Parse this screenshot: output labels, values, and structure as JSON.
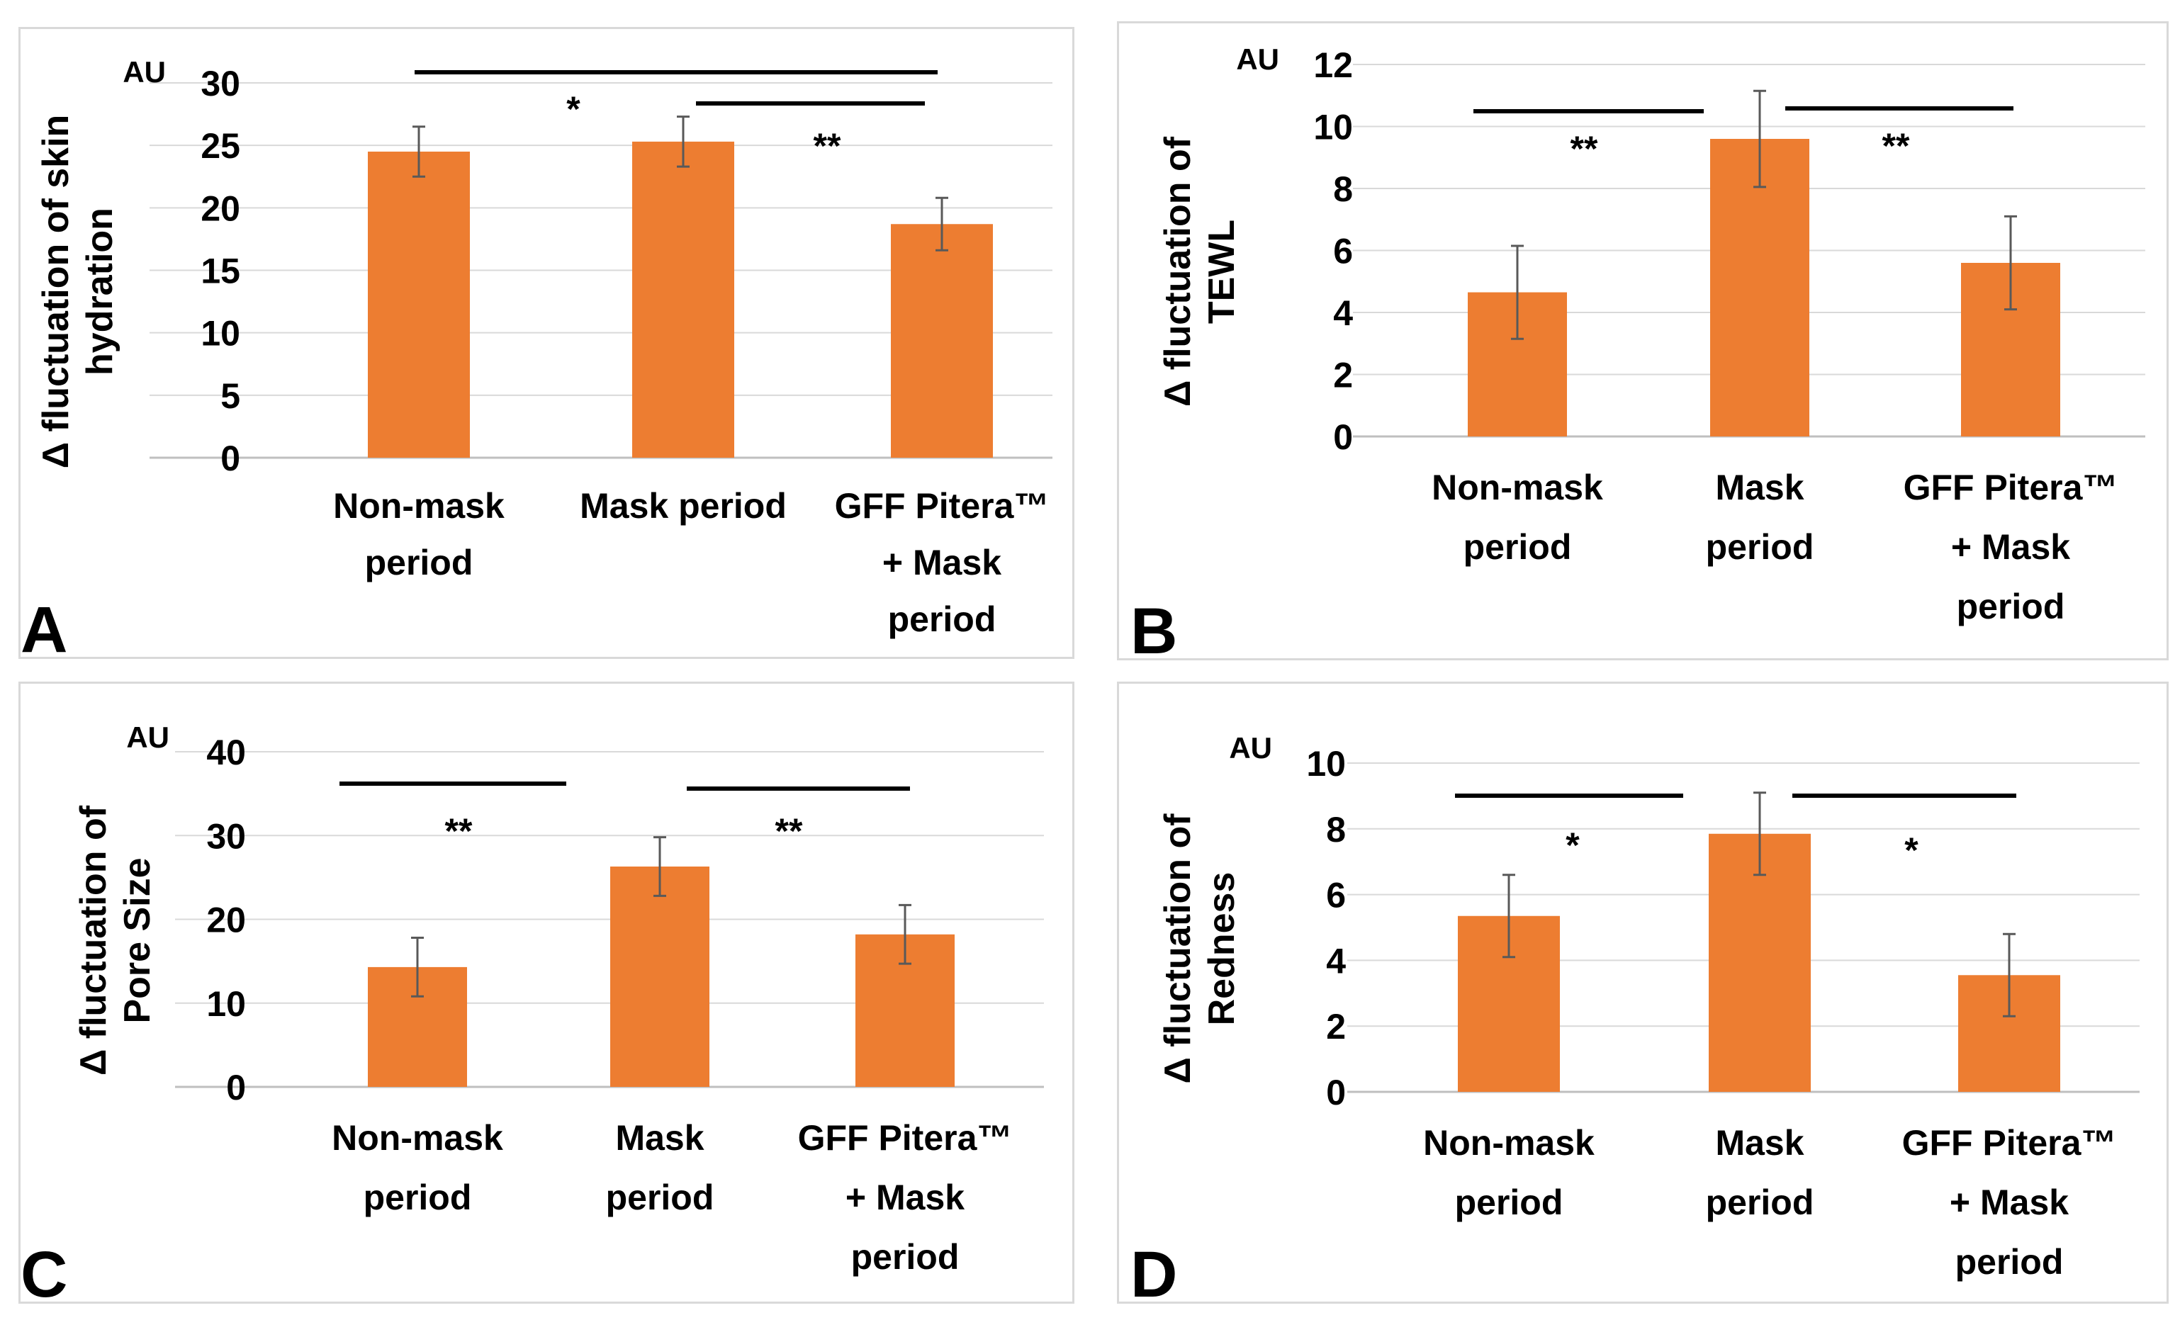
{
  "colors": {
    "bar": "#ED7D31",
    "grid": "#d9d9d9",
    "axis": "#bfbfbf",
    "text": "#000000",
    "error": "#595959"
  },
  "chart_data": [
    {
      "panel": "A",
      "type": "bar",
      "unit_label": "AU",
      "ylabel": [
        "Δ fluctuation of skin",
        "hydration"
      ],
      "ylim": [
        0,
        30
      ],
      "ticks": [
        0,
        5,
        10,
        15,
        20,
        25,
        30
      ],
      "categories": [
        [
          "Non-mask",
          "period"
        ],
        [
          "Mask period"
        ],
        [
          "GFF Pitera™",
          "+ Mask",
          "period"
        ]
      ],
      "values": [
        24.5,
        25.3,
        18.7
      ],
      "errors": [
        2.0,
        2.0,
        2.1
      ],
      "significance": [
        {
          "from": 0,
          "to": 2,
          "label": "*"
        },
        {
          "from": 1,
          "to": 2,
          "label": "**"
        }
      ]
    },
    {
      "panel": "B",
      "type": "bar",
      "unit_label": "AU",
      "ylabel": [
        "Δ fluctuation of",
        "TEWL"
      ],
      "ylim": [
        0,
        12
      ],
      "ticks": [
        0,
        2,
        4,
        6,
        8,
        10,
        12
      ],
      "categories": [
        [
          "Non-mask",
          "period"
        ],
        [
          "Mask",
          "period"
        ],
        [
          "GFF Pitera™",
          "+ Mask",
          "period"
        ]
      ],
      "values": [
        4.65,
        9.6,
        5.6
      ],
      "errors": [
        1.5,
        1.55,
        1.5
      ],
      "significance": [
        {
          "from": 0,
          "to": 1,
          "label": "**"
        },
        {
          "from": 1,
          "to": 2,
          "label": "**"
        }
      ]
    },
    {
      "panel": "C",
      "type": "bar",
      "unit_label": "AU",
      "ylabel": [
        "Δ fluctuation of",
        "Pore Size"
      ],
      "ylim": [
        0,
        40
      ],
      "ticks": [
        0,
        10,
        20,
        30,
        40
      ],
      "categories": [
        [
          "Non-mask",
          "period"
        ],
        [
          "Mask",
          "period"
        ],
        [
          "GFF Pitera™",
          "+ Mask",
          "period"
        ]
      ],
      "values": [
        14.3,
        26.3,
        18.2
      ],
      "errors": [
        3.5,
        3.5,
        3.5
      ],
      "significance": [
        {
          "from": 0,
          "to": 1,
          "label": "**"
        },
        {
          "from": 1,
          "to": 2,
          "label": "**"
        }
      ]
    },
    {
      "panel": "D",
      "type": "bar",
      "unit_label": "AU",
      "ylabel": [
        "Δ fluctuation of",
        "Redness"
      ],
      "ylim": [
        0,
        10
      ],
      "ticks": [
        0,
        2,
        4,
        6,
        8,
        10
      ],
      "categories": [
        [
          "Non-mask",
          "period"
        ],
        [
          "Mask",
          "period"
        ],
        [
          "GFF Pitera™",
          "+ Mask",
          "period"
        ]
      ],
      "values": [
        5.35,
        7.85,
        3.55
      ],
      "errors": [
        1.25,
        1.25,
        1.25
      ],
      "significance": [
        {
          "from": 0,
          "to": 1,
          "label": "*"
        },
        {
          "from": 1,
          "to": 2,
          "label": "*"
        }
      ]
    }
  ]
}
